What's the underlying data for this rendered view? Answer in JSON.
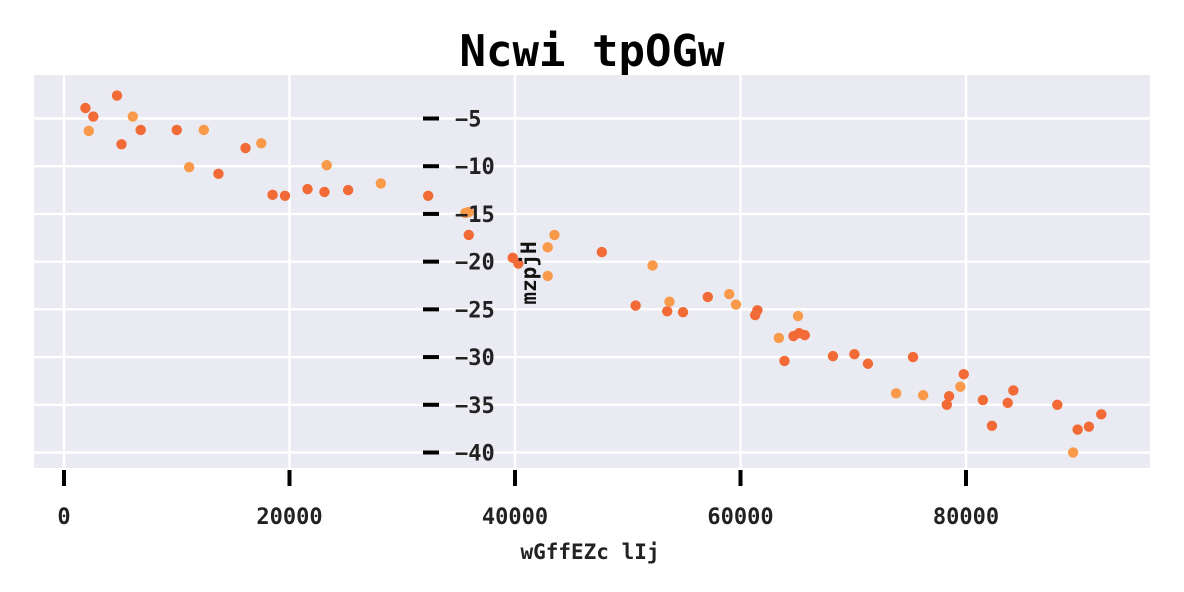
{
  "chart_data": {
    "type": "scatter",
    "title": "Ncwi tpOGw",
    "xlabel": "wGffEZc lIj",
    "ylabel": "mzpjH",
    "xlim": [
      -2000,
      96000
    ],
    "ylim": [
      -42,
      -1
    ],
    "xticks": [
      0,
      20000,
      40000,
      60000,
      80000
    ],
    "xtick_labels": [
      "0",
      "20000",
      "40000",
      "60000",
      "80000"
    ],
    "yticks": [
      -5,
      -10,
      -15,
      -20,
      -25,
      -30,
      -35,
      -40
    ],
    "ytick_labels": [
      "−5",
      "−10",
      "−15",
      "−20",
      "−25",
      "−30",
      "−35",
      "−40"
    ],
    "y_axis_position": "x=32000",
    "grid": true,
    "colors": {
      "background": "#eaeaf2",
      "grid": "#ffffff",
      "series_a": "#f26a35",
      "series_b": "#f99a4a"
    },
    "series": [
      {
        "color": "#f26a35",
        "points": [
          [
            1900,
            -3.9
          ],
          [
            2600,
            -4.8
          ],
          [
            4700,
            -2.6
          ],
          [
            5100,
            -7.7
          ],
          [
            6800,
            -6.2
          ],
          [
            10000,
            -6.2
          ],
          [
            13700,
            -10.8
          ],
          [
            16100,
            -8.1
          ],
          [
            18500,
            -13.0
          ],
          [
            19600,
            -13.1
          ],
          [
            21600,
            -12.4
          ],
          [
            23100,
            -12.7
          ],
          [
            25200,
            -12.5
          ],
          [
            32300,
            -13.1
          ],
          [
            35900,
            -17.2
          ],
          [
            39800,
            -19.6
          ],
          [
            40300,
            -20.2
          ],
          [
            47700,
            -19.0
          ],
          [
            50700,
            -24.6
          ],
          [
            53500,
            -25.2
          ],
          [
            54900,
            -25.3
          ],
          [
            57100,
            -23.7
          ],
          [
            61300,
            -25.6
          ],
          [
            61500,
            -25.1
          ],
          [
            63900,
            -30.4
          ],
          [
            64700,
            -27.8
          ],
          [
            65200,
            -27.5
          ],
          [
            65700,
            -27.7
          ],
          [
            68200,
            -29.9
          ],
          [
            70100,
            -29.7
          ],
          [
            71300,
            -30.7
          ],
          [
            75300,
            -30.0
          ],
          [
            78300,
            -35.0
          ],
          [
            78500,
            -34.1
          ],
          [
            79800,
            -31.8
          ],
          [
            81500,
            -34.5
          ],
          [
            82300,
            -37.2
          ],
          [
            83700,
            -34.8
          ],
          [
            84200,
            -33.5
          ],
          [
            88100,
            -35.0
          ],
          [
            89900,
            -37.6
          ],
          [
            90900,
            -37.3
          ],
          [
            92000,
            -36.0
          ]
        ]
      },
      {
        "color": "#f99a4a",
        "points": [
          [
            2200,
            -6.3
          ],
          [
            6100,
            -4.8
          ],
          [
            11100,
            -10.1
          ],
          [
            12400,
            -6.2
          ],
          [
            17500,
            -7.6
          ],
          [
            23300,
            -9.9
          ],
          [
            28100,
            -11.8
          ],
          [
            35600,
            -14.9
          ],
          [
            35900,
            -14.8
          ],
          [
            42900,
            -18.5
          ],
          [
            42900,
            -21.5
          ],
          [
            43500,
            -17.2
          ],
          [
            52200,
            -20.4
          ],
          [
            53700,
            -24.2
          ],
          [
            59000,
            -23.4
          ],
          [
            59600,
            -24.5
          ],
          [
            63400,
            -28.0
          ],
          [
            65100,
            -25.7
          ],
          [
            73800,
            -33.8
          ],
          [
            76200,
            -34.0
          ],
          [
            79500,
            -33.1
          ],
          [
            89500,
            -40.0
          ]
        ]
      }
    ]
  }
}
